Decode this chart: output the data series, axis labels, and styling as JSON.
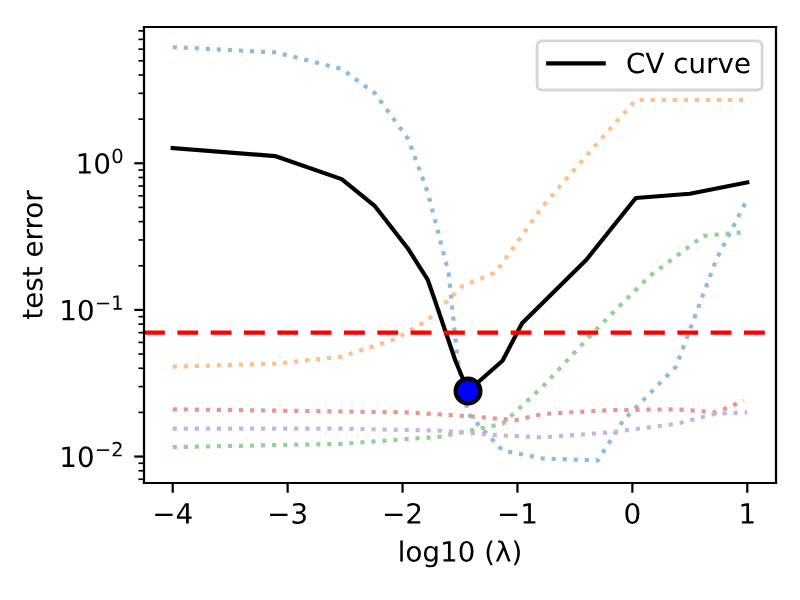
{
  "chart_data": {
    "type": "line",
    "xlabel": "log10 (λ)",
    "ylabel": "test error",
    "log": "y",
    "xlim": [
      -4.25,
      1.25
    ],
    "ylim": [
      0.0066,
      8.5
    ],
    "xticks": [
      {
        "value": -4,
        "label": "−4"
      },
      {
        "value": -3,
        "label": "−3"
      },
      {
        "value": -2,
        "label": "−2"
      },
      {
        "value": -1,
        "label": "−1"
      },
      0,
      1
    ],
    "yticks": [
      {
        "value": 0.01,
        "label": "10$^{−2}$"
      },
      {
        "value": 0.1,
        "label": "10$^{−1}$"
      },
      {
        "value": 1,
        "label": "10$^{0}$"
      }
    ],
    "grid": false,
    "legend": "top right",
    "series": [
      {
        "color": "#8fbbd9",
        "line_style": "dotted",
        "x": [
          -4,
          -3.1,
          -2.53,
          -2.24,
          -1.95,
          -1.78,
          -1.6,
          -1.52,
          -1.43,
          -1.13,
          -0.78,
          -0.3,
          -0.08,
          0.38,
          0.73,
          1
        ],
        "values": [
          6.2,
          5.7,
          4.4,
          3.0,
          1.46,
          0.63,
          0.18,
          0.045,
          0.0196,
          0.011,
          0.0097,
          0.0094,
          0.0176,
          0.041,
          0.22,
          0.57
        ]
      },
      {
        "color": "#ffbf86",
        "line_style": "dotted",
        "x": [
          -4,
          -3.1,
          -2.53,
          -2.07,
          -1.78,
          -1.48,
          -1.19,
          -0.78,
          -0.32,
          0.03,
          1
        ],
        "values": [
          0.041,
          0.043,
          0.048,
          0.063,
          0.085,
          0.145,
          0.18,
          0.51,
          1.33,
          2.7,
          2.7
        ]
      },
      {
        "color": "#95cf95",
        "line_style": "dotted",
        "x": [
          -4,
          -2.53,
          -1.66,
          -1.13,
          -0.78,
          -0.32,
          0.15,
          0.62,
          1
        ],
        "values": [
          0.0116,
          0.0122,
          0.0137,
          0.0167,
          0.03,
          0.073,
          0.17,
          0.32,
          0.34
        ]
      },
      {
        "color": "#ea9393",
        "line_style": "dotted",
        "x": [
          -4,
          -1.95,
          -1.37,
          -1.02,
          -0.78,
          -0.2,
          0.38,
          0.73,
          0.97
        ],
        "values": [
          0.021,
          0.02,
          0.0187,
          0.0177,
          0.0195,
          0.0207,
          0.021,
          0.02,
          0.024
        ]
      },
      {
        "color": "#c9b3de",
        "line_style": "dotted",
        "x": [
          -4,
          -2.53,
          -1.66,
          -1.19,
          -0.78,
          -0.2,
          0.38,
          0.73,
          1
        ],
        "values": [
          0.0155,
          0.0155,
          0.015,
          0.014,
          0.0135,
          0.0146,
          0.0167,
          0.0196,
          0.02
        ]
      },
      {
        "name": "CV curve",
        "color": "#000000",
        "line_style": "solid",
        "x": [
          -4,
          -3.11,
          -2.53,
          -2.24,
          -1.95,
          -1.78,
          -1.72,
          -1.54,
          -1.43,
          -1.13,
          -0.96,
          -0.4,
          0.03,
          0.5,
          1
        ],
        "values": [
          1.27,
          1.12,
          0.78,
          0.51,
          0.26,
          0.16,
          0.117,
          0.045,
          0.028,
          0.045,
          0.081,
          0.22,
          0.58,
          0.62,
          0.74
        ]
      },
      {
        "type": "scatter",
        "color": "#0000ff",
        "marker": "circle",
        "x": [
          -1.43
        ],
        "values": [
          0.028
        ]
      }
    ],
    "ref_lines": [
      {
        "axis": "y",
        "value": 0.07,
        "color": "#ff0000",
        "line_style": "dashed"
      }
    ]
  }
}
